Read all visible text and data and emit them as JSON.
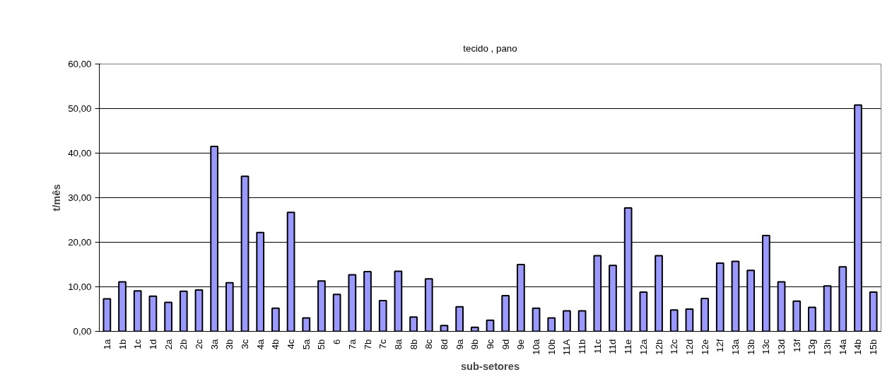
{
  "chart_data": {
    "type": "bar",
    "title": "tecido , pano",
    "xlabel": "sub-setores",
    "ylabel": "t/mês",
    "categories": [
      "1a",
      "1b",
      "1c",
      "1d",
      "2a",
      "2b",
      "2c",
      "3a",
      "3b",
      "3c",
      "4a",
      "4b",
      "4c",
      "5a",
      "5b",
      "6",
      "7a",
      "7b",
      "7c",
      "8a",
      "8b",
      "8c",
      "8d",
      "9a",
      "9b",
      "9c",
      "9d",
      "9e",
      "10a",
      "10b",
      "11A",
      "11b",
      "11c",
      "11d",
      "11e",
      "12a",
      "12b",
      "12c",
      "12d",
      "12e",
      "12f",
      "13a",
      "13b",
      "13c",
      "13d",
      "13f",
      "13g",
      "13h",
      "14a",
      "14b",
      "15b"
    ],
    "values": [
      7.3,
      11.1,
      9.1,
      7.9,
      6.5,
      9.0,
      9.3,
      41.5,
      10.9,
      34.8,
      22.2,
      5.2,
      26.7,
      3.0,
      11.3,
      8.3,
      12.7,
      13.4,
      6.9,
      13.5,
      3.2,
      11.8,
      1.3,
      5.5,
      0.9,
      2.5,
      8.0,
      15.0,
      5.2,
      3.0,
      4.6,
      4.6,
      17.0,
      14.8,
      27.7,
      8.8,
      17.0,
      4.8,
      5.0,
      7.4,
      15.3,
      15.7,
      13.7,
      21.5,
      11.1,
      6.8,
      5.4,
      10.2,
      14.5,
      50.8,
      8.8
    ],
    "color": "#9999ff",
    "ylim": [
      0,
      60
    ],
    "yticks": [
      {
        "value": 0,
        "label": "0,00"
      },
      {
        "value": 10,
        "label": "10,00"
      },
      {
        "value": 20,
        "label": "20,00"
      },
      {
        "value": 30,
        "label": "30,00"
      },
      {
        "value": 40,
        "label": "40,00"
      },
      {
        "value": 50,
        "label": "50,00"
      },
      {
        "value": 60,
        "label": "60,00"
      }
    ],
    "grid": "y"
  }
}
